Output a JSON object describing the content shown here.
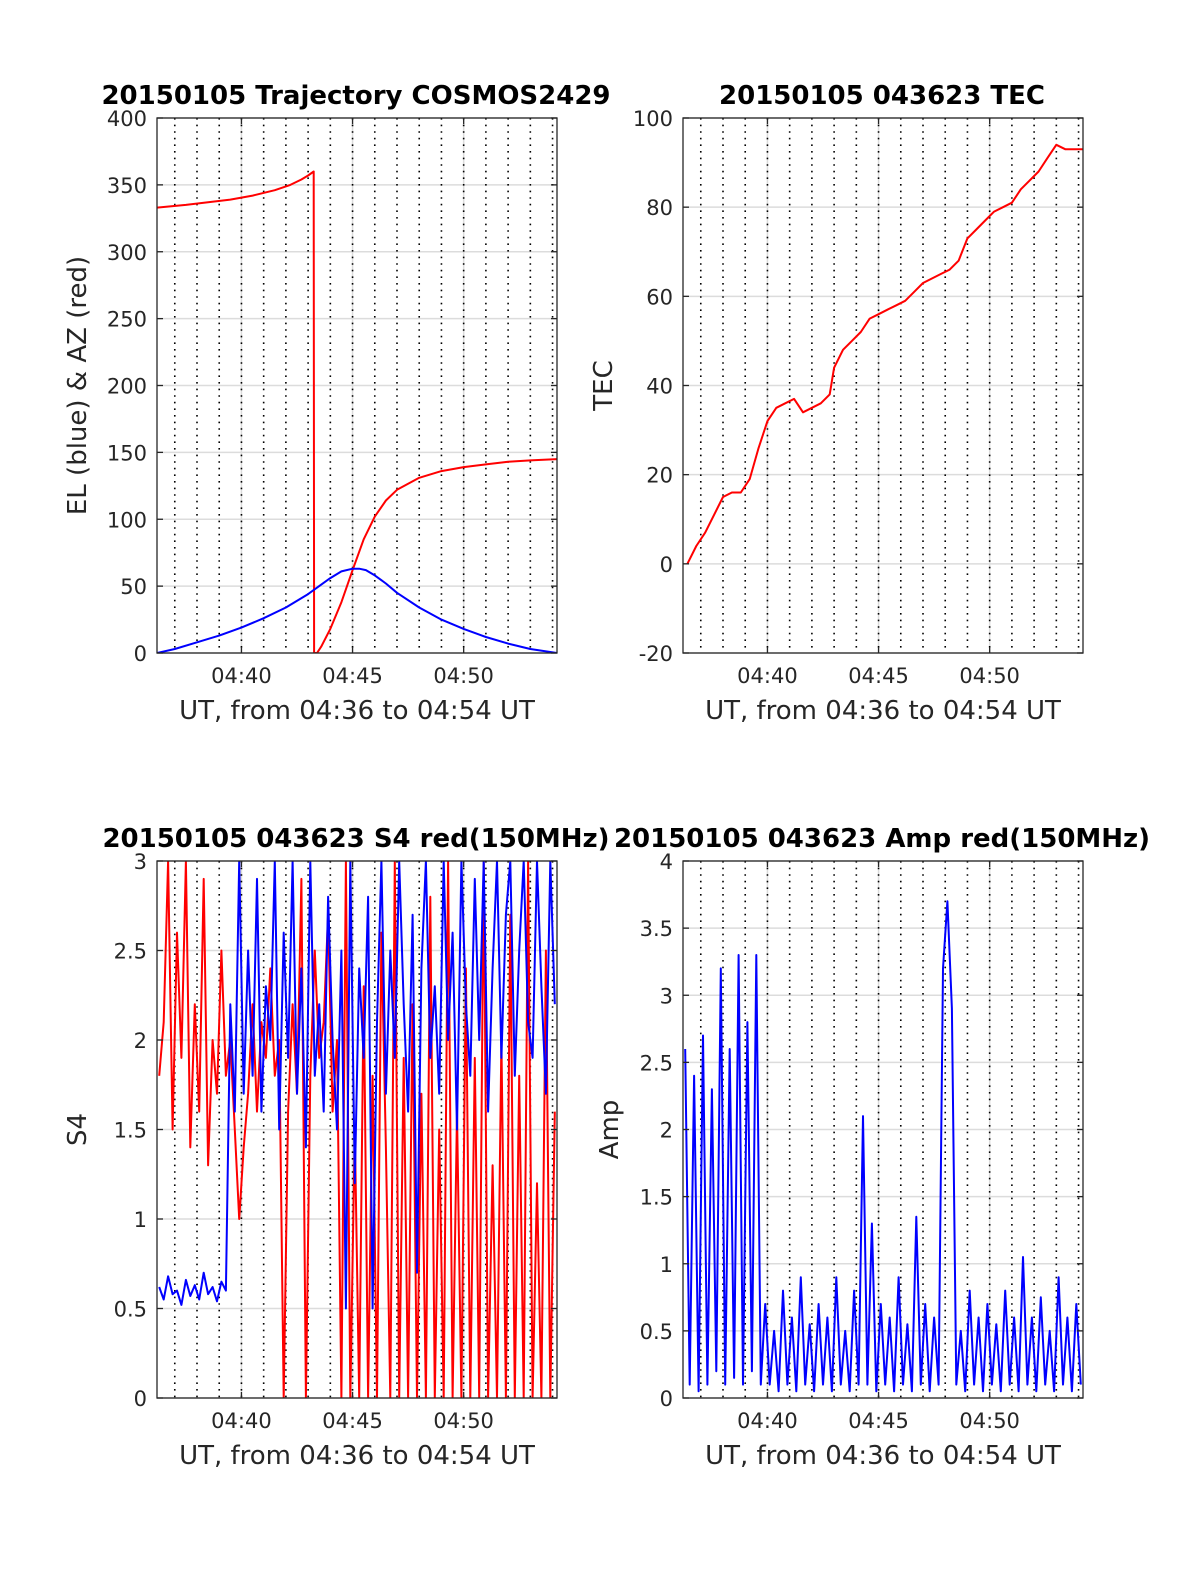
{
  "chart_data": [
    {
      "id": "trajectory",
      "type": "line",
      "title": "20150105 Trajectory COSMOS2429",
      "xlabel": "UT, from 04:36 to 04:54 UT",
      "ylabel": "EL (blue) & AZ (red)",
      "x_unit": "minutes of hour 04 UT",
      "xlim": [
        36.2,
        54.2
      ],
      "ylim": [
        0,
        400
      ],
      "xticks": [
        40,
        45,
        50
      ],
      "xtick_labels": [
        "04:40",
        "04:45",
        "04:50"
      ],
      "yticks": [
        0,
        50,
        100,
        150,
        200,
        250,
        300,
        350,
        400
      ],
      "ytick_labels": [
        "0",
        "50",
        "100",
        "150",
        "200",
        "250",
        "300",
        "350",
        "400"
      ],
      "grid": true,
      "dotted_minute_lines": true,
      "series": [
        {
          "color": "#ff0000",
          "x": [
            36.2,
            37.5,
            38.5,
            39.5,
            40.5,
            41.5,
            42.2,
            42.7,
            43.0,
            43.25,
            43.27,
            43.4,
            43.6,
            44.0,
            44.5,
            45.0,
            45.5,
            46.0,
            46.5,
            47.0,
            48.0,
            49.0,
            50.0,
            51.0,
            52.0,
            53.0,
            54.2
          ],
          "y": [
            333,
            335,
            337,
            339,
            342,
            346,
            350,
            354,
            357,
            360,
            0,
            0,
            5,
            18,
            38,
            62,
            85,
            102,
            114,
            122,
            131,
            136,
            139,
            141,
            143,
            144,
            145
          ]
        },
        {
          "color": "#0000ff",
          "x": [
            36.2,
            37.0,
            38.0,
            39.0,
            40.0,
            41.0,
            42.0,
            43.0,
            43.5,
            44.0,
            44.5,
            45.0,
            45.3,
            45.6,
            46.0,
            46.5,
            47.0,
            48.0,
            49.0,
            50.0,
            51.0,
            52.0,
            53.0,
            54.2
          ],
          "y": [
            0,
            3,
            8,
            13,
            19,
            26,
            34,
            44,
            50,
            56,
            61,
            63,
            63,
            62,
            58,
            52,
            45,
            34,
            25,
            18,
            12,
            7,
            3,
            0
          ]
        }
      ]
    },
    {
      "id": "tec",
      "type": "line",
      "title": "20150105 043623 TEC",
      "xlabel": "UT, from 04:36 to 04:54 UT",
      "ylabel": "TEC",
      "x_unit": "minutes of hour 04 UT",
      "xlim": [
        36.2,
        54.2
      ],
      "ylim": [
        -20,
        100
      ],
      "xticks": [
        40,
        45,
        50
      ],
      "xtick_labels": [
        "04:40",
        "04:45",
        "04:50"
      ],
      "yticks": [
        -20,
        0,
        20,
        40,
        60,
        80,
        100
      ],
      "ytick_labels": [
        "-20",
        "0",
        "20",
        "40",
        "60",
        "80",
        "100"
      ],
      "grid": true,
      "dotted_minute_lines": true,
      "series": [
        {
          "color": "#ff0000",
          "x": [
            36.4,
            36.8,
            37.2,
            37.6,
            38.0,
            38.4,
            38.8,
            39.2,
            39.6,
            40.0,
            40.4,
            40.8,
            41.2,
            41.6,
            42.0,
            42.4,
            42.8,
            43.0,
            43.4,
            43.8,
            44.2,
            44.6,
            45.0,
            45.4,
            45.8,
            46.2,
            46.6,
            47.0,
            47.4,
            47.8,
            48.2,
            48.6,
            49.0,
            49.4,
            49.8,
            50.2,
            50.6,
            51.0,
            51.4,
            51.8,
            52.2,
            52.6,
            53.0,
            53.4,
            53.8,
            54.2
          ],
          "y": [
            0,
            4,
            7,
            11,
            15,
            16,
            16,
            19,
            26,
            32,
            35,
            36,
            37,
            34,
            35,
            36,
            38,
            44,
            48,
            50,
            52,
            55,
            56,
            57,
            58,
            59,
            61,
            63,
            64,
            65,
            66,
            68,
            73,
            75,
            77,
            79,
            80,
            81,
            84,
            86,
            88,
            91,
            94,
            93,
            93,
            93
          ]
        }
      ]
    },
    {
      "id": "s4",
      "type": "line",
      "title": "20150105 043623 S4 red(150MHz)",
      "xlabel": "UT, from 04:36 to 04:54 UT",
      "ylabel": "S4",
      "x_unit": "minutes of hour 04 UT",
      "xlim": [
        36.2,
        54.2
      ],
      "ylim": [
        0,
        3
      ],
      "xticks": [
        40,
        45,
        50
      ],
      "xtick_labels": [
        "04:40",
        "04:45",
        "04:50"
      ],
      "yticks": [
        0,
        0.5,
        1,
        1.5,
        2,
        2.5,
        3
      ],
      "ytick_labels": [
        "0",
        "0.5",
        "1",
        "1.5",
        "2",
        "2.5",
        "3"
      ],
      "grid": true,
      "dotted_minute_lines": true,
      "series": [
        {
          "color": "#ff0000",
          "x": [
            36.3,
            36.5,
            36.7,
            36.9,
            37.1,
            37.3,
            37.5,
            37.7,
            37.9,
            38.1,
            38.3,
            38.5,
            38.7,
            38.9,
            39.1,
            39.3,
            39.5,
            39.7,
            39.9,
            40.1,
            40.3,
            40.5,
            40.7,
            40.9,
            41.1,
            41.3,
            41.5,
            41.7,
            41.9,
            42.1,
            42.3,
            42.5,
            42.7,
            42.9,
            43.1,
            43.3,
            43.5,
            43.7,
            43.9,
            44.1,
            44.3,
            44.5,
            44.7,
            44.9,
            45.1,
            45.3,
            45.5,
            45.7,
            45.9,
            46.1,
            46.3,
            46.5,
            46.7,
            46.9,
            47.1,
            47.3,
            47.5,
            47.7,
            47.9,
            48.1,
            48.3,
            48.5,
            48.7,
            48.9,
            49.1,
            49.3,
            49.5,
            49.7,
            49.9,
            50.1,
            50.3,
            50.5,
            50.7,
            50.9,
            51.1,
            51.3,
            51.5,
            51.7,
            51.9,
            52.1,
            52.3,
            52.5,
            52.7,
            52.9,
            53.1,
            53.3,
            53.5,
            53.7,
            53.9,
            54.1
          ],
          "y": [
            1.8,
            2.1,
            3.0,
            1.5,
            2.6,
            1.9,
            3.0,
            1.4,
            2.2,
            1.6,
            2.9,
            1.3,
            2.0,
            1.7,
            2.5,
            1.8,
            2.0,
            1.5,
            1.0,
            1.4,
            1.7,
            2.2,
            1.6,
            2.1,
            1.9,
            2.4,
            1.8,
            2.0,
            0.0,
            1.6,
            2.2,
            1.7,
            2.9,
            0.0,
            1.8,
            2.5,
            1.9,
            2.1,
            2.7,
            1.6,
            2.0,
            0.0,
            3.0,
            0.0,
            1.5,
            0.0,
            2.3,
            0.0,
            1.8,
            0.0,
            2.6,
            1.4,
            0.0,
            3.0,
            0.0,
            1.9,
            0.0,
            2.2,
            0.0,
            1.7,
            0.0,
            2.8,
            0.0,
            1.5,
            0.0,
            3.0,
            0.0,
            1.6,
            0.0,
            2.4,
            0.0,
            1.9,
            0.0,
            3.0,
            0.0,
            1.3,
            0.0,
            2.0,
            0.0,
            2.7,
            0.0,
            1.8,
            0.0,
            3.0,
            0.0,
            1.2,
            0.0,
            2.5,
            0.0,
            1.6
          ]
        },
        {
          "color": "#0000ff",
          "x": [
            36.3,
            36.5,
            36.7,
            36.9,
            37.1,
            37.3,
            37.5,
            37.7,
            37.9,
            38.1,
            38.3,
            38.5,
            38.7,
            38.9,
            39.1,
            39.3,
            39.5,
            39.7,
            39.9,
            40.1,
            40.3,
            40.5,
            40.7,
            40.9,
            41.1,
            41.3,
            41.5,
            41.7,
            41.9,
            42.1,
            42.3,
            42.5,
            42.7,
            42.9,
            43.1,
            43.3,
            43.5,
            43.7,
            43.9,
            44.1,
            44.3,
            44.5,
            44.7,
            44.9,
            45.1,
            45.3,
            45.5,
            45.7,
            45.9,
            46.1,
            46.3,
            46.5,
            46.7,
            46.9,
            47.1,
            47.3,
            47.5,
            47.7,
            47.9,
            48.1,
            48.3,
            48.5,
            48.7,
            48.9,
            49.1,
            49.3,
            49.5,
            49.7,
            49.9,
            50.1,
            50.3,
            50.5,
            50.7,
            50.9,
            51.1,
            51.3,
            51.5,
            51.7,
            51.9,
            52.1,
            52.3,
            52.5,
            52.7,
            52.9,
            53.1,
            53.3,
            53.5,
            53.7,
            53.9,
            54.1
          ],
          "y": [
            0.62,
            0.55,
            0.68,
            0.58,
            0.6,
            0.52,
            0.66,
            0.57,
            0.63,
            0.55,
            0.7,
            0.58,
            0.62,
            0.54,
            0.65,
            0.6,
            2.2,
            1.6,
            3.0,
            1.7,
            2.5,
            1.8,
            2.9,
            1.6,
            2.3,
            2.0,
            3.0,
            1.5,
            2.6,
            1.9,
            3.0,
            1.7,
            2.4,
            1.4,
            3.0,
            1.8,
            2.2,
            1.6,
            2.8,
            2.0,
            1.5,
            2.5,
            0.5,
            3.0,
            1.2,
            2.4,
            1.9,
            2.8,
            0.5,
            2.1,
            3.0,
            1.7,
            2.5,
            1.9,
            3.0,
            2.2,
            1.6,
            2.7,
            0.7,
            2.4,
            3.0,
            1.9,
            2.3,
            1.7,
            3.0,
            2.0,
            2.6,
            1.5,
            3.0,
            2.2,
            1.8,
            2.9,
            2.0,
            3.0,
            1.6,
            2.4,
            3.0,
            1.9,
            2.7,
            3.0,
            1.8,
            2.5,
            3.0,
            2.1,
            1.9,
            3.0,
            2.3,
            1.7,
            3.0,
            2.2
          ]
        }
      ]
    },
    {
      "id": "amp",
      "type": "line",
      "title": "20150105 043623 Amp red(150MHz)",
      "xlabel": "UT, from 04:36 to 04:54 UT",
      "ylabel": "Amp",
      "x_unit": "minutes of hour 04 UT",
      "xlim": [
        36.2,
        54.2
      ],
      "ylim": [
        0,
        4
      ],
      "xticks": [
        40,
        45,
        50
      ],
      "xtick_labels": [
        "04:40",
        "04:45",
        "04:50"
      ],
      "yticks": [
        0,
        0.5,
        1,
        1.5,
        2,
        2.5,
        3,
        3.5,
        4
      ],
      "ytick_labels": [
        "0",
        "0.5",
        "1",
        "1.5",
        "2",
        "2.5",
        "3",
        "3.5",
        "4"
      ],
      "grid": true,
      "dotted_minute_lines": true,
      "series": [
        {
          "color": "#0000ff",
          "x": [
            36.3,
            36.5,
            36.7,
            36.9,
            37.1,
            37.3,
            37.5,
            37.7,
            37.9,
            38.1,
            38.3,
            38.5,
            38.7,
            38.9,
            39.1,
            39.3,
            39.5,
            39.7,
            39.9,
            40.1,
            40.3,
            40.5,
            40.7,
            40.9,
            41.1,
            41.3,
            41.5,
            41.7,
            41.9,
            42.1,
            42.3,
            42.5,
            42.7,
            42.9,
            43.1,
            43.3,
            43.5,
            43.7,
            43.9,
            44.1,
            44.3,
            44.5,
            44.7,
            44.9,
            45.1,
            45.3,
            45.5,
            45.7,
            45.9,
            46.1,
            46.3,
            46.5,
            46.7,
            46.9,
            47.1,
            47.3,
            47.5,
            47.7,
            47.9,
            48.1,
            48.3,
            48.5,
            48.7,
            48.9,
            49.1,
            49.3,
            49.5,
            49.7,
            49.9,
            50.1,
            50.3,
            50.5,
            50.7,
            50.9,
            51.1,
            51.3,
            51.5,
            51.7,
            51.9,
            52.1,
            52.3,
            52.5,
            52.7,
            52.9,
            53.1,
            53.3,
            53.5,
            53.7,
            53.9,
            54.1
          ],
          "y": [
            2.6,
            0.1,
            2.4,
            0.05,
            2.7,
            0.1,
            2.3,
            0.2,
            3.2,
            0.1,
            2.6,
            0.15,
            3.3,
            0.1,
            2.8,
            0.2,
            3.3,
            0.1,
            0.7,
            0.1,
            0.5,
            0.05,
            0.8,
            0.1,
            0.6,
            0.05,
            0.9,
            0.1,
            0.55,
            0.05,
            0.7,
            0.1,
            0.6,
            0.05,
            0.9,
            0.1,
            0.5,
            0.05,
            0.8,
            0.1,
            2.1,
            0.1,
            1.3,
            0.05,
            0.7,
            0.1,
            0.6,
            0.05,
            0.9,
            0.1,
            0.55,
            0.05,
            1.35,
            0.1,
            0.7,
            0.05,
            0.6,
            0.1,
            3.2,
            3.7,
            2.9,
            0.1,
            0.5,
            0.05,
            0.8,
            0.1,
            0.6,
            0.05,
            0.7,
            0.1,
            0.55,
            0.05,
            0.8,
            0.1,
            0.6,
            0.05,
            1.05,
            0.1,
            0.6,
            0.05,
            0.75,
            0.1,
            0.5,
            0.05,
            0.9,
            0.1,
            0.6,
            0.05,
            0.7,
            0.1
          ]
        }
      ]
    }
  ]
}
